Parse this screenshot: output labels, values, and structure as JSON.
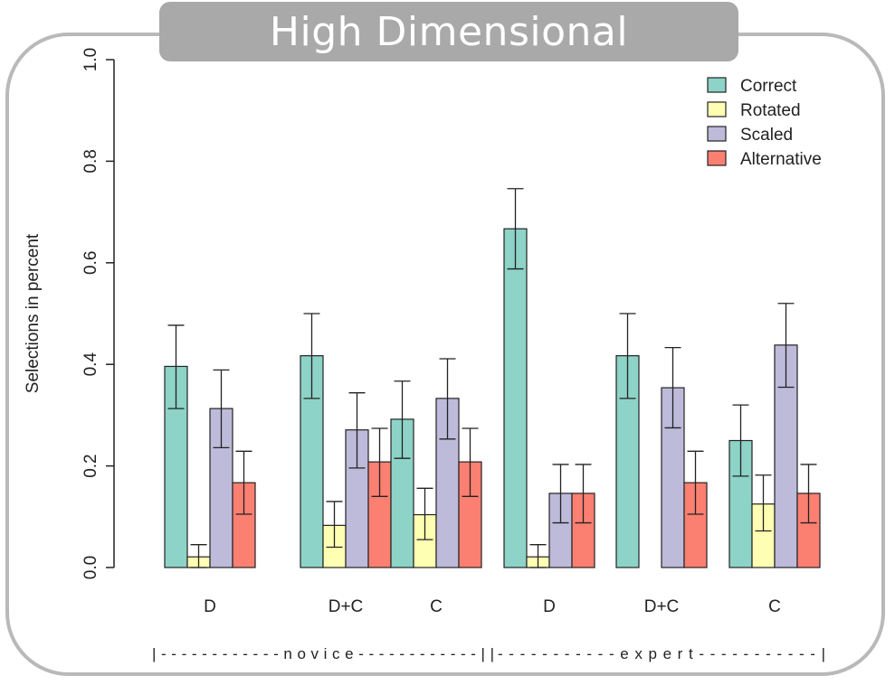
{
  "title": "High Dimensional",
  "chart_data": {
    "type": "bar",
    "categories": [
      "D",
      "D+C",
      "C",
      "D",
      "D+C",
      "C"
    ],
    "groups": [
      {
        "label": "novice",
        "categories": [
          "D",
          "D+C",
          "C"
        ]
      },
      {
        "label": "expert",
        "categories": [
          "D",
          "D+C",
          "C"
        ]
      }
    ],
    "group_line_text": {
      "novice": "|------------novice------------||",
      "expert": "-----------expert-----------|"
    },
    "ylabel": "Selections in percent",
    "xlabel": "",
    "ylim": [
      0,
      1.0
    ],
    "yticks": [
      "0.0",
      "0.2",
      "0.4",
      "0.6",
      "0.8",
      "1.0"
    ],
    "legend_position": "top-right",
    "series": [
      {
        "name": "Correct",
        "color": "#8dd3c7",
        "values": [
          0.396,
          0.417,
          0.292,
          0.667,
          0.417,
          0.25
        ],
        "err_low": [
          0.313,
          0.333,
          0.215,
          0.588,
          0.333,
          0.18
        ],
        "err_high": [
          0.477,
          0.5,
          0.367,
          0.746,
          0.5,
          0.32
        ]
      },
      {
        "name": "Rotated",
        "color": "#ffffb3",
        "values": [
          0.021,
          0.083,
          0.104,
          0.021,
          0.0,
          0.125
        ],
        "err_low": [
          0.0,
          0.04,
          0.055,
          0.0,
          0.0,
          0.072
        ],
        "err_high": [
          0.045,
          0.13,
          0.156,
          0.045,
          0.0,
          0.182
        ]
      },
      {
        "name": "Scaled",
        "color": "#bebada",
        "values": [
          0.313,
          0.271,
          0.333,
          0.146,
          0.354,
          0.438
        ],
        "err_low": [
          0.236,
          0.196,
          0.253,
          0.088,
          0.275,
          0.355
        ],
        "err_high": [
          0.389,
          0.344,
          0.411,
          0.203,
          0.433,
          0.52
        ]
      },
      {
        "name": "Alternative",
        "color": "#fb8072",
        "values": [
          0.167,
          0.208,
          0.208,
          0.146,
          0.167,
          0.146
        ],
        "err_low": [
          0.105,
          0.14,
          0.14,
          0.088,
          0.105,
          0.088
        ],
        "err_high": [
          0.229,
          0.274,
          0.274,
          0.203,
          0.229,
          0.203
        ]
      }
    ]
  }
}
